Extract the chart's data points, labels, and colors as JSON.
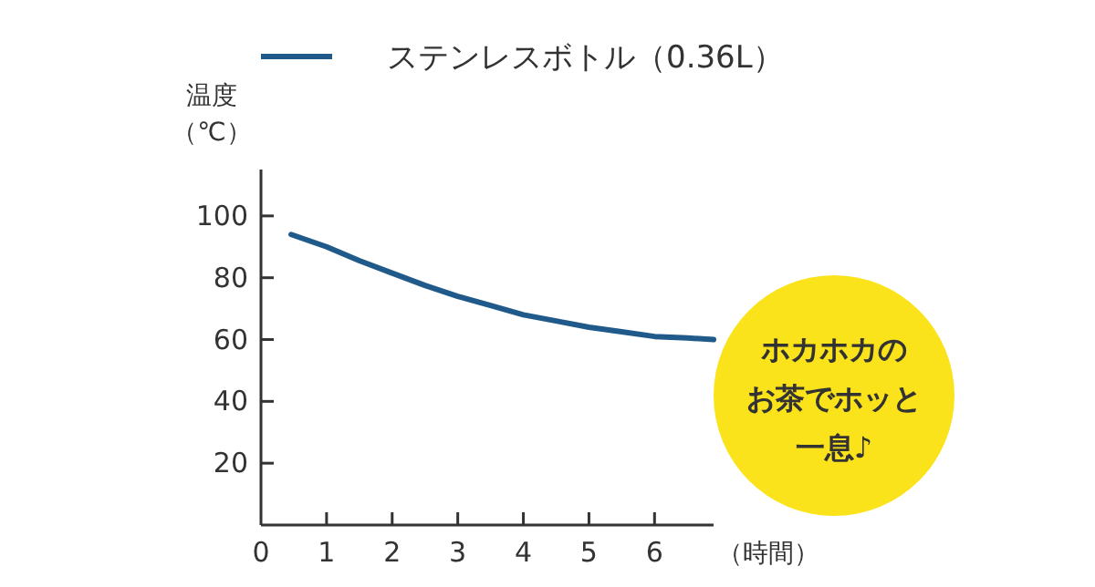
{
  "chart_data": {
    "type": "line",
    "ylabel": "温度（℃）",
    "xlabel": "（時間）",
    "xlim": [
      0,
      6.9
    ],
    "xticks": [
      0,
      1,
      2,
      3,
      4,
      5,
      6
    ],
    "ylim": [
      0,
      115
    ],
    "yticks": [
      20,
      40,
      60,
      80,
      100
    ],
    "legend": "top",
    "grid": false,
    "series": [
      {
        "name": "ステンレスボトル（0.36L）",
        "color": "#1f5a8a",
        "x": [
          0.46,
          1,
          1.5,
          2,
          2.5,
          3,
          3.5,
          4,
          4.5,
          5,
          5.5,
          6,
          6.5,
          6.9
        ],
        "values": [
          94,
          90,
          85.5,
          81.5,
          77.5,
          74,
          71,
          68,
          66,
          64,
          62.5,
          61,
          60.5,
          60
        ]
      }
    ],
    "annotations": [
      "ホカホカの",
      "お茶でホッと",
      "一息♪"
    ]
  }
}
